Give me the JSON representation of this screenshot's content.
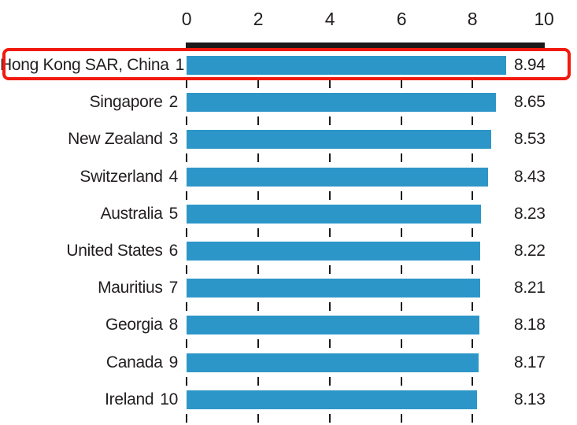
{
  "chart_data": {
    "type": "bar",
    "orientation": "horizontal",
    "title": "",
    "categories": [
      "Hong Kong SAR, China",
      "Singapore",
      "New Zealand",
      "Switzerland",
      "Australia",
      "United States",
      "Mauritius",
      "Georgia",
      "Canada",
      "Ireland"
    ],
    "ranks": [
      "1",
      "2",
      "3",
      "4",
      "5",
      "6",
      "7",
      "8",
      "9",
      "10"
    ],
    "values": [
      8.94,
      8.65,
      8.53,
      8.43,
      8.23,
      8.22,
      8.21,
      8.18,
      8.17,
      8.13
    ],
    "value_labels": [
      "8.94",
      "8.65",
      "8.53",
      "8.43",
      "8.23",
      "8.22",
      "8.21",
      "8.18",
      "8.17",
      "8.13"
    ],
    "xlim": [
      0,
      10
    ],
    "x_tick_labels": [
      "0",
      "2",
      "4",
      "6",
      "8",
      "10"
    ],
    "x_tick_values": [
      0,
      2,
      4,
      6,
      8,
      10
    ],
    "gridline_ticks": [
      0,
      2,
      4,
      6,
      8
    ],
    "grid": "short dashed vertical tick marks between bars",
    "legend_position": "none",
    "axis_position": "top",
    "highlight": {
      "index": 0,
      "label": "Hong Kong SAR, China",
      "style": "red rounded rectangle outline around first row"
    }
  },
  "colors": {
    "bar": "#2d96c8",
    "axis_line": "#1d191a",
    "text": "#221e1f",
    "highlight_border": "#f2190f",
    "background": "#ffffff"
  }
}
